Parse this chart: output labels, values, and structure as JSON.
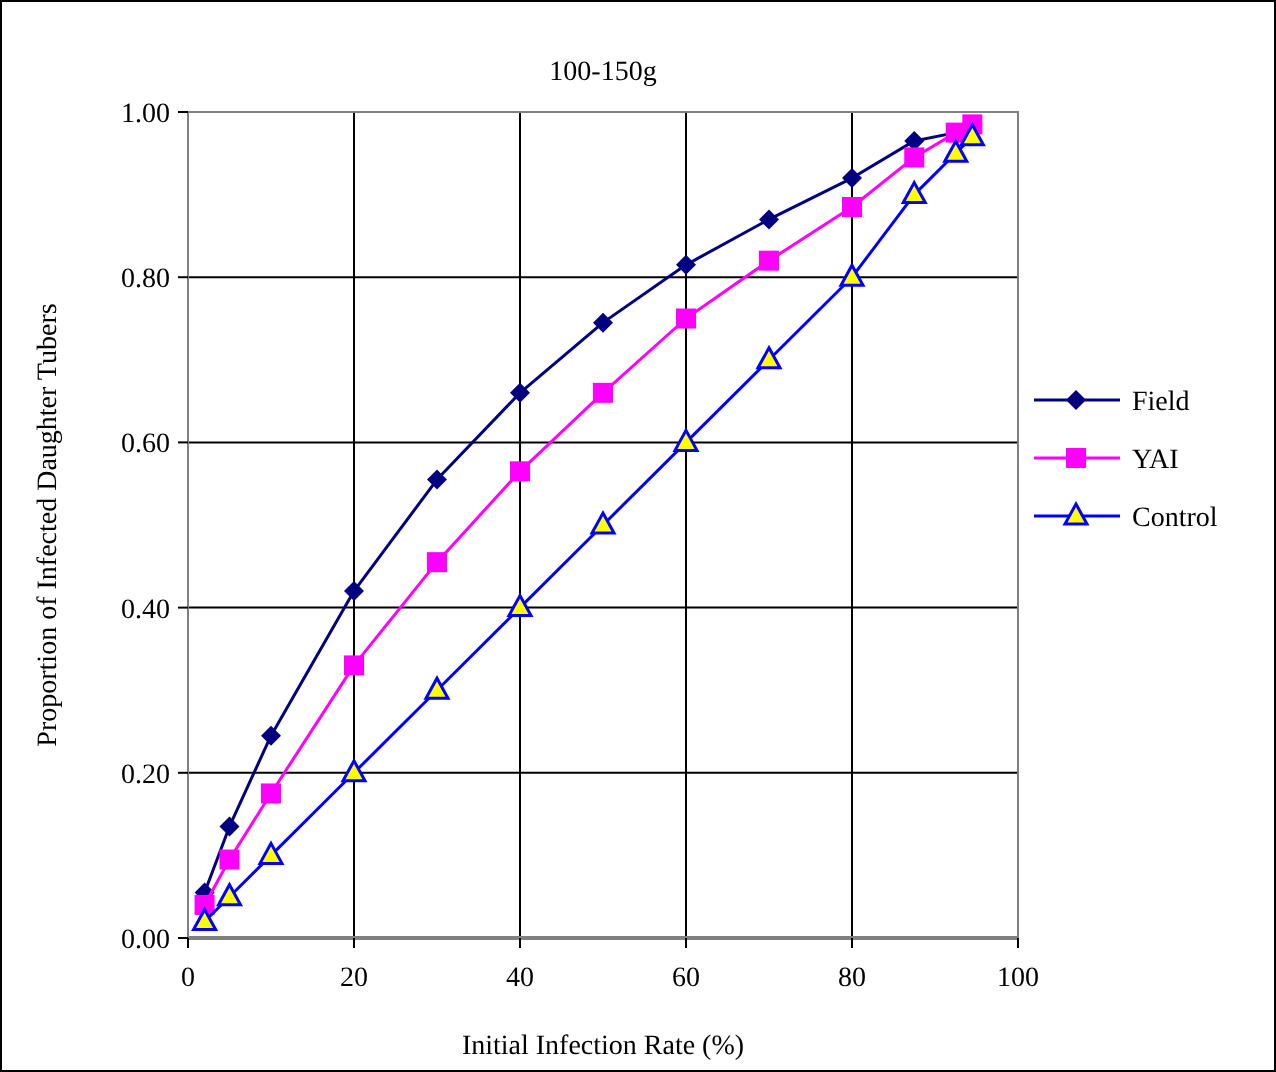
{
  "chart_data": {
    "type": "line",
    "title": "100-150g",
    "xlabel": "Initial Infection Rate (%)",
    "ylabel": "Proportion of Infected Daughter Tubers",
    "x": [
      2,
      5,
      10,
      20,
      30,
      40,
      50,
      60,
      70,
      80,
      87.5,
      92.5,
      94.5
    ],
    "series": [
      {
        "name": "Field",
        "color": "#000080",
        "marker": "diamond",
        "values": [
          0.055,
          0.135,
          0.245,
          0.42,
          0.555,
          0.66,
          0.745,
          0.815,
          0.87,
          0.92,
          0.965,
          0.975,
          0.985
        ]
      },
      {
        "name": "YAI",
        "color": "#ff00ff",
        "marker": "square",
        "values": [
          0.04,
          0.095,
          0.175,
          0.33,
          0.455,
          0.565,
          0.66,
          0.75,
          0.82,
          0.885,
          0.945,
          0.975,
          0.985
        ]
      },
      {
        "name": "Control",
        "color": "#0000ff",
        "marker": "triangle",
        "values": [
          0.02,
          0.05,
          0.1,
          0.2,
          0.3,
          0.4,
          0.5,
          0.6,
          0.7,
          0.8,
          0.9,
          0.95,
          0.97
        ]
      }
    ],
    "xlim": [
      0,
      100
    ],
    "xticks": [
      0,
      20,
      40,
      60,
      80,
      100
    ],
    "ylim": [
      0,
      1
    ],
    "yticks": [
      {
        "value": 0,
        "label": "0.00"
      },
      {
        "value": 0.2,
        "label": "0.20"
      },
      {
        "value": 0.4,
        "label": "0.40"
      },
      {
        "value": 0.6,
        "label": "0.60"
      },
      {
        "value": 0.8,
        "label": "0.80"
      },
      {
        "value": 1,
        "label": "1.00"
      }
    ],
    "grid": true,
    "legend": "right"
  }
}
